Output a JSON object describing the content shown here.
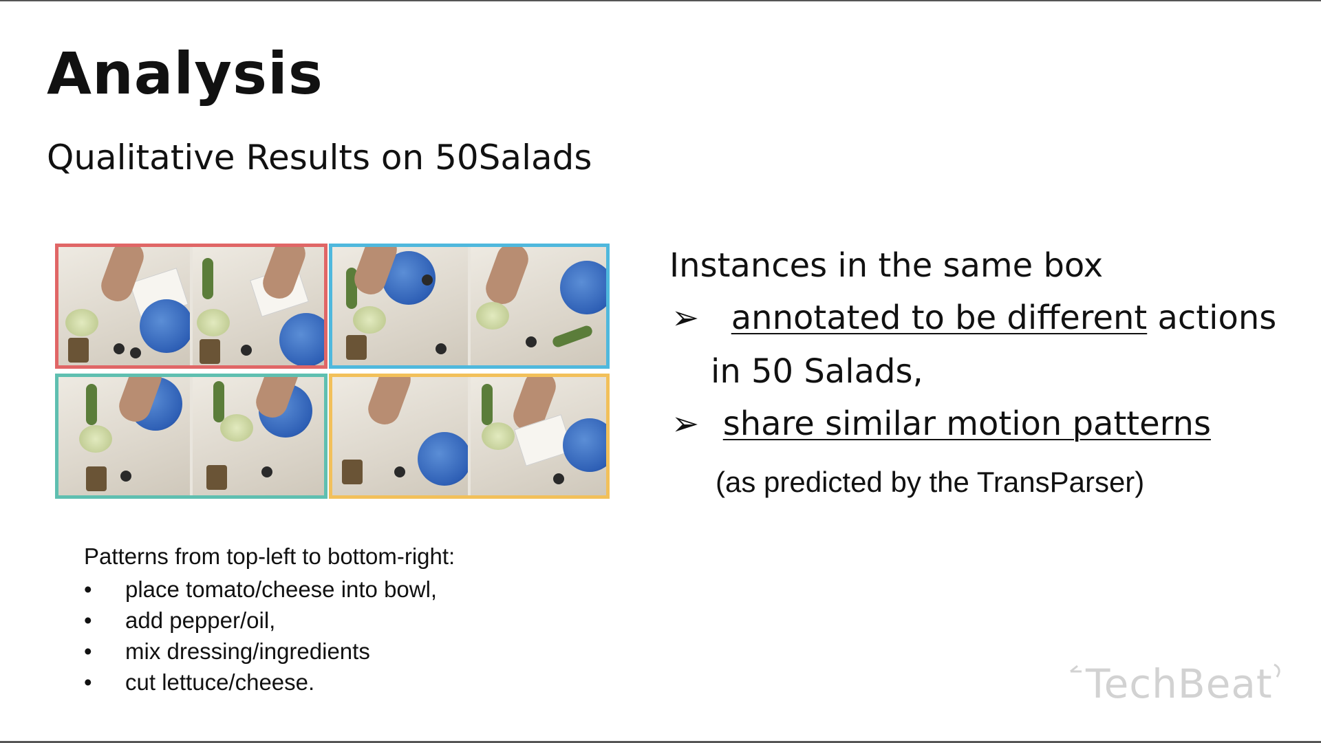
{
  "slide": {
    "title": "Analysis",
    "subtitle": "Qualitative Results on 50Salads"
  },
  "figure": {
    "box_colors": {
      "top_left": "#e06666",
      "top_right": "#4fb8dd",
      "bottom_left": "#5fbfb0",
      "bottom_right": "#f2c05a"
    }
  },
  "right_text": {
    "heading": "Instances in the same box",
    "arrow_glyph": "➢",
    "point1_underlined": "annotated to be different",
    "point1_rest": " actions",
    "point1_line2": "in 50 Salads,",
    "point2_underlined": "share similar motion patterns",
    "note": "(as predicted by the TransParser)"
  },
  "patterns": {
    "title": "Patterns from top-left to bottom-right:",
    "bullet": "•",
    "items": [
      "place tomato/cheese into bowl,",
      "add pepper/oil,",
      "mix dressing/ingredients",
      "cut lettuce/cheese."
    ]
  },
  "watermark": {
    "logo_text": "TechBeat"
  }
}
